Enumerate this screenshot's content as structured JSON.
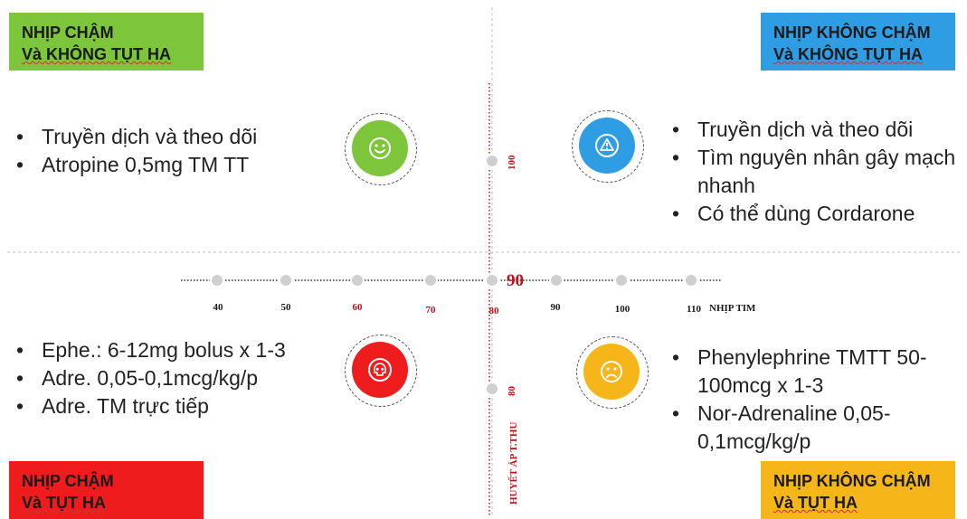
{
  "colors": {
    "top_left": "#7dc53a",
    "top_right": "#2f9de4",
    "bottom_left": "#ee1c1c",
    "bottom_right": "#f6b619",
    "axis_red": "#c0121a"
  },
  "quadrants": {
    "top_left": {
      "title_1": "NHỊP CHẬM",
      "title_2": "Và KHÔNG TỤT HA",
      "icon": "smile-icon",
      "items": [
        "Truyền dịch và theo dõi",
        "Atropine 0,5mg TM TT"
      ]
    },
    "top_right": {
      "title_1": "NHỊP KHÔNG CHẬM",
      "title_2": "Và KHÔNG TỤT HA",
      "icon": "warning-icon",
      "items": [
        "Truyền dịch và theo dõi",
        "Tìm nguyên nhân gây mạch nhanh",
        "Có thể dùng Cordarone"
      ]
    },
    "bottom_left": {
      "title_1": "NHỊP CHẬM",
      "title_2": "Và TỤT HA",
      "icon": "skull-icon",
      "items": [
        "Ephe.: 6-12mg bolus x 1-3",
        "Adre. 0,05-0,1mcg/kg/p",
        "Adre. TM trực tiếp"
      ]
    },
    "bottom_right": {
      "title_1": "NHỊP KHÔNG CHẬM",
      "title_2": "Và TỤT HA",
      "icon": "sad-icon",
      "items": [
        "Phenylephrine TMTT 50-100mcg x 1-3",
        "Nor-Adrenaline 0,05-0,1mcg/kg/p"
      ]
    }
  },
  "axes": {
    "x_label": "NHỊP TIM",
    "x_ticks": [
      "40",
      "50",
      "60",
      "70",
      "80",
      "90",
      "100",
      "110"
    ],
    "x_threshold": "90",
    "y_label": "HUYẾT ÁP T.THU",
    "y_ticks": [
      "100",
      "80"
    ]
  }
}
